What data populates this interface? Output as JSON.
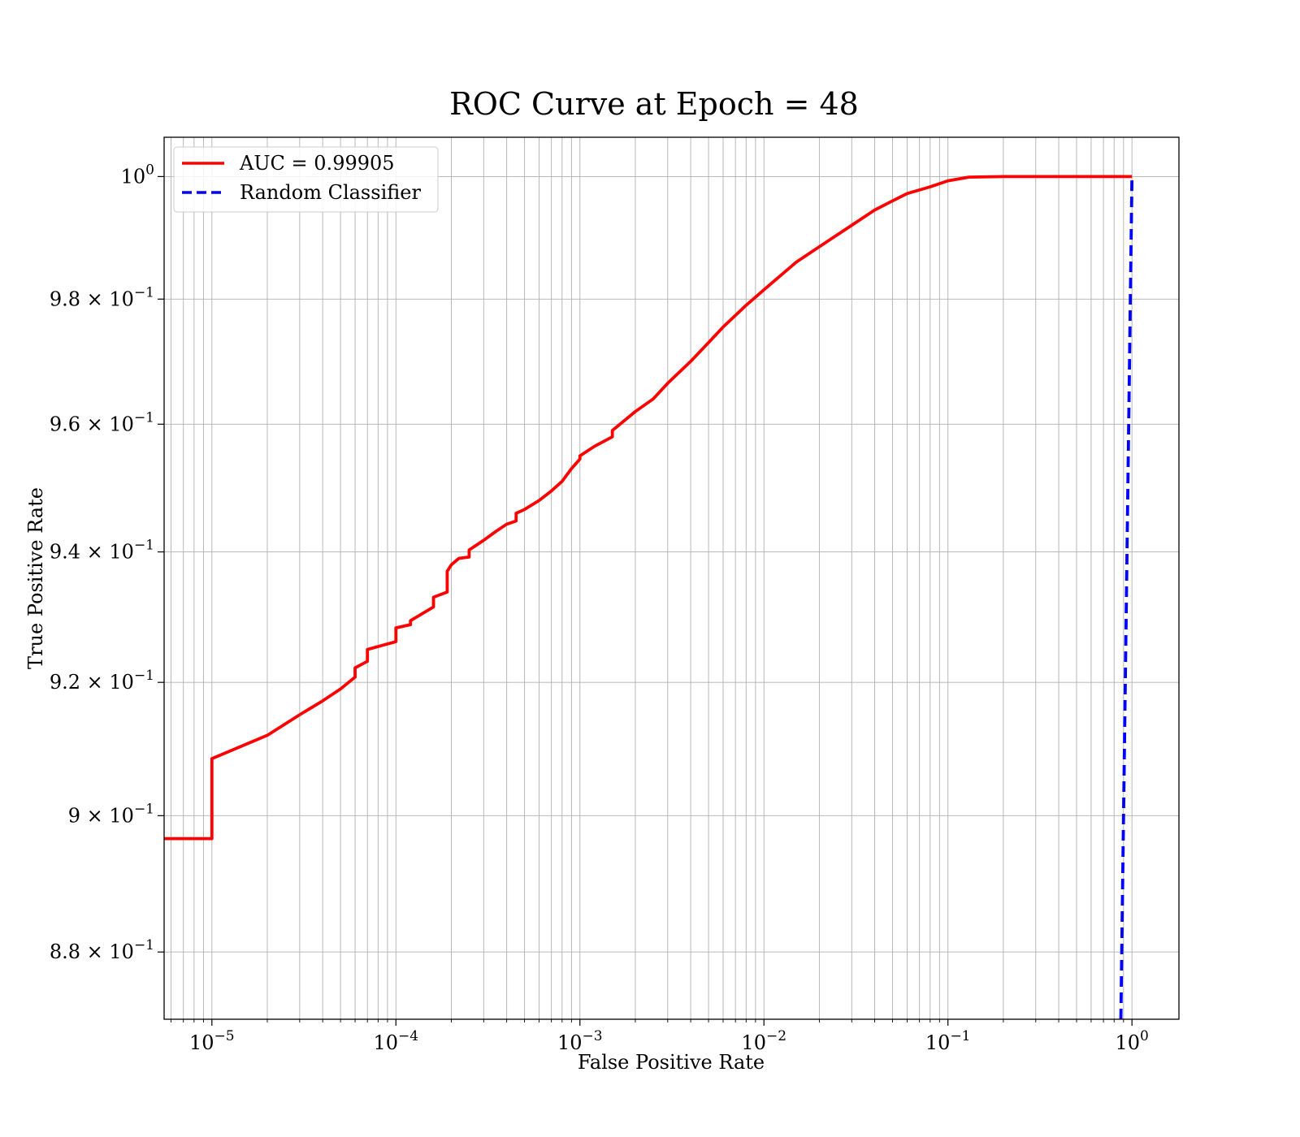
{
  "chart_data": {
    "type": "line",
    "title": "ROC Curve at Epoch = 48",
    "xlabel": "False Positive Rate",
    "ylabel": "True Positive Rate",
    "xscale": "log",
    "yscale": "log",
    "xlim": [
      5.5e-06,
      1.8
    ],
    "ylim": [
      0.8703,
      1.0065
    ],
    "grid": true,
    "grid_minor": true,
    "legend_position": "top-left",
    "x_ticks": [
      {
        "base": "10",
        "exp": "−5",
        "value": 1e-05
      },
      {
        "base": "10",
        "exp": "−4",
        "value": 0.0001
      },
      {
        "base": "10",
        "exp": "−3",
        "value": 0.001
      },
      {
        "base": "10",
        "exp": "−2",
        "value": 0.01
      },
      {
        "base": "10",
        "exp": "−1",
        "value": 0.1
      },
      {
        "base": "10",
        "exp": "0",
        "value": 1
      }
    ],
    "y_ticks": [
      {
        "base": "10",
        "exp": "0",
        "value": 1.0
      },
      {
        "base": "9.8 × 10",
        "exp": "−1",
        "value": 0.98
      },
      {
        "base": "9.6 × 10",
        "exp": "−1",
        "value": 0.96
      },
      {
        "base": "9.4 × 10",
        "exp": "−1",
        "value": 0.94
      },
      {
        "base": "9.2 × 10",
        "exp": "−1",
        "value": 0.92
      },
      {
        "base": "9 × 10",
        "exp": "−1",
        "value": 0.9
      },
      {
        "base": "8.8 × 10",
        "exp": "−1",
        "value": 0.88
      }
    ],
    "series": [
      {
        "name": "AUC = 0.99905",
        "color": "#ff0000",
        "style": "solid",
        "x": [
          5.5e-06,
          1e-05,
          1e-05,
          2e-05,
          3e-05,
          4e-05,
          5e-05,
          6e-05,
          6e-05,
          7e-05,
          7e-05,
          0.0001,
          0.0001,
          0.00012,
          0.00012,
          0.00016,
          0.00016,
          0.00019,
          0.00019,
          0.0002,
          0.00022,
          0.00025,
          0.00025,
          0.0003,
          0.00035,
          0.0004,
          0.00045,
          0.00045,
          0.0005,
          0.0006,
          0.0007,
          0.0008,
          0.0009,
          0.001,
          0.001,
          0.0012,
          0.0015,
          0.0015,
          0.002,
          0.0025,
          0.003,
          0.004,
          0.005,
          0.006,
          0.008,
          0.01,
          0.015,
          0.02,
          0.03,
          0.04,
          0.05,
          0.06,
          0.08,
          0.1,
          0.13,
          0.2,
          0.5,
          1.0
        ],
        "y": [
          0.8966,
          0.8966,
          0.9085,
          0.912,
          0.9151,
          0.9172,
          0.919,
          0.9208,
          0.9222,
          0.9232,
          0.925,
          0.9262,
          0.9283,
          0.9288,
          0.9294,
          0.9315,
          0.933,
          0.9338,
          0.937,
          0.938,
          0.939,
          0.9392,
          0.9403,
          0.9418,
          0.9432,
          0.9443,
          0.9448,
          0.946,
          0.9466,
          0.948,
          0.9495,
          0.951,
          0.953,
          0.9545,
          0.955,
          0.9565,
          0.958,
          0.959,
          0.962,
          0.964,
          0.9665,
          0.97,
          0.973,
          0.9755,
          0.979,
          0.9815,
          0.986,
          0.9885,
          0.992,
          0.9945,
          0.996,
          0.9972,
          0.9983,
          0.9993,
          0.9999,
          1.0,
          1.0,
          1.0
        ]
      },
      {
        "name": "Random Classifier",
        "color": "#0000ff",
        "style": "dashed",
        "x": [
          0.8703,
          1.0
        ],
        "y": [
          0.8703,
          1.0
        ]
      }
    ]
  }
}
